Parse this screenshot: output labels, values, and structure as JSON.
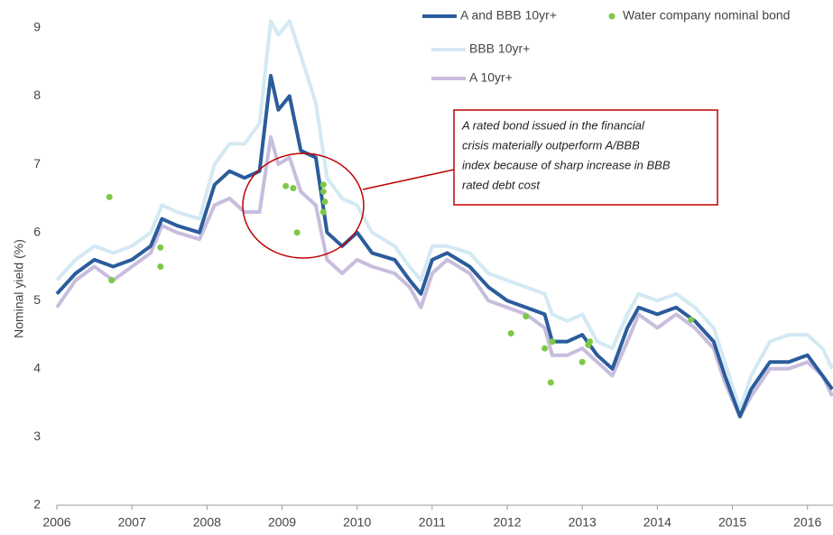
{
  "chart_data": {
    "type": "line",
    "y_label": "Nominal yield (%)",
    "xlim": [
      2006,
      2016.34
    ],
    "ylim": [
      2,
      9.1
    ],
    "xticks": [
      2006,
      2007,
      2008,
      2009,
      2010,
      2011,
      2012,
      2013,
      2014,
      2015,
      2016
    ],
    "yticks": [
      2,
      3,
      4,
      5,
      6,
      7,
      8,
      9
    ],
    "annotation": [
      "A rated bond issued in the financial",
      "crisis materially outperform A/BBB",
      "index because of sharp increase in BBB",
      "rated debt cost"
    ],
    "x": [
      2006.0,
      2006.25,
      2006.5,
      2006.75,
      2007.0,
      2007.25,
      2007.4,
      2007.6,
      2007.9,
      2008.1,
      2008.3,
      2008.5,
      2008.7,
      2008.85,
      2008.95,
      2009.1,
      2009.25,
      2009.45,
      2009.6,
      2009.8,
      2010.0,
      2010.2,
      2010.5,
      2010.7,
      2010.85,
      2011.0,
      2011.2,
      2011.5,
      2011.75,
      2012.0,
      2012.25,
      2012.5,
      2012.6,
      2012.8,
      2013.0,
      2013.2,
      2013.4,
      2013.6,
      2013.75,
      2014.0,
      2014.25,
      2014.5,
      2014.75,
      2014.9,
      2015.1,
      2015.25,
      2015.5,
      2015.75,
      2016.0,
      2016.2,
      2016.33
    ],
    "series": [
      {
        "name": "A and BBB 10yr+",
        "color": "#2b5c9b",
        "mark": "line",
        "values": [
          5.1,
          5.4,
          5.6,
          5.5,
          5.6,
          5.8,
          6.2,
          6.1,
          6.0,
          6.7,
          6.9,
          6.8,
          6.9,
          8.3,
          7.8,
          8.0,
          7.2,
          7.1,
          6.0,
          5.8,
          6.0,
          5.7,
          5.6,
          5.3,
          5.1,
          5.6,
          5.7,
          5.5,
          5.2,
          5.0,
          4.9,
          4.8,
          4.4,
          4.4,
          4.5,
          4.2,
          4.0,
          4.6,
          4.9,
          4.8,
          4.9,
          4.7,
          4.4,
          3.9,
          3.3,
          3.7,
          4.1,
          4.1,
          4.2,
          3.9,
          3.7
        ]
      },
      {
        "name": "BBB 10yr+",
        "color": "#d3e9f3",
        "mark": "line",
        "values": [
          5.3,
          5.6,
          5.8,
          5.7,
          5.8,
          6.0,
          6.4,
          6.3,
          6.2,
          7.0,
          7.3,
          7.3,
          7.6,
          9.1,
          8.9,
          9.1,
          8.6,
          7.9,
          6.8,
          6.5,
          6.4,
          6.0,
          5.8,
          5.5,
          5.3,
          5.8,
          5.8,
          5.7,
          5.4,
          5.3,
          5.2,
          5.1,
          4.8,
          4.7,
          4.8,
          4.4,
          4.3,
          4.8,
          5.1,
          5.0,
          5.1,
          4.9,
          4.6,
          4.1,
          3.4,
          3.9,
          4.4,
          4.5,
          4.5,
          4.3,
          4.0
        ]
      },
      {
        "name": "A 10yr+",
        "color": "#c8bddc",
        "mark": "line",
        "values": [
          4.9,
          5.3,
          5.5,
          5.3,
          5.5,
          5.7,
          6.1,
          6.0,
          5.9,
          6.4,
          6.5,
          6.3,
          6.3,
          7.4,
          7.0,
          7.1,
          6.6,
          6.4,
          5.6,
          5.4,
          5.6,
          5.5,
          5.4,
          5.2,
          4.9,
          5.4,
          5.6,
          5.4,
          5.0,
          4.9,
          4.8,
          4.6,
          4.2,
          4.2,
          4.3,
          4.1,
          3.9,
          4.4,
          4.8,
          4.6,
          4.8,
          4.6,
          4.3,
          3.8,
          3.3,
          3.6,
          4.0,
          4.0,
          4.1,
          3.9,
          3.6
        ]
      },
      {
        "name": "Water company nominal bond",
        "color": "#7dc846",
        "mark": "point",
        "x": [
          2006.7,
          2006.73,
          2007.38,
          2007.38,
          2009.05,
          2009.15,
          2009.2,
          2009.55,
          2009.55,
          2009.57,
          2009.55,
          2012.05,
          2012.25,
          2012.5,
          2012.58,
          2012.6,
          2013.0,
          2013.1,
          2013.08,
          2014.45
        ],
        "values": [
          6.52,
          5.3,
          5.78,
          5.5,
          6.68,
          6.65,
          6.0,
          6.7,
          6.6,
          6.45,
          6.3,
          4.52,
          4.77,
          4.3,
          3.8,
          4.4,
          4.1,
          4.4,
          4.35,
          4.72
        ]
      }
    ]
  }
}
